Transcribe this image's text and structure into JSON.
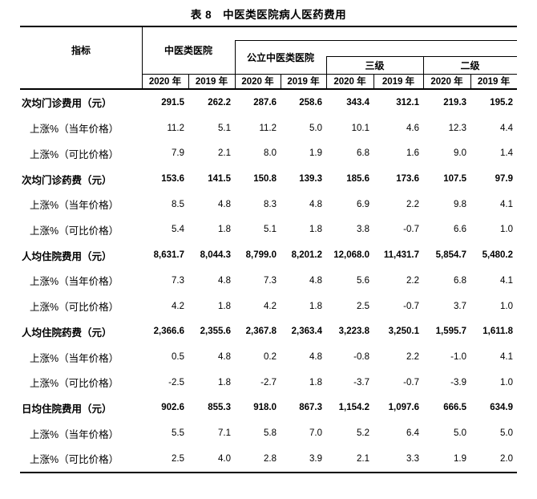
{
  "title": "表 8　中医类医院病人医药费用",
  "table": {
    "indicator_header": "指标",
    "groups": {
      "tcm_hospitals": "中医类医院",
      "public_tcm_hospitals": "公立中医类医院",
      "tertiary": "三级",
      "secondary": "二级"
    },
    "year_headers": [
      "2020 年",
      "2019 年",
      "2020 年",
      "2019 年",
      "2020 年",
      "2019 年",
      "2020 年",
      "2019 年"
    ],
    "rows": [
      {
        "label": "次均门诊费用（元）",
        "bold": true,
        "indent": false,
        "values": [
          "291.5",
          "262.2",
          "287.6",
          "258.6",
          "343.4",
          "312.1",
          "219.3",
          "195.2"
        ]
      },
      {
        "label": "上涨%（当年价格）",
        "bold": false,
        "indent": true,
        "values": [
          "11.2",
          "5.1",
          "11.2",
          "5.0",
          "10.1",
          "4.6",
          "12.3",
          "4.4"
        ]
      },
      {
        "label": "上涨%（可比价格）",
        "bold": false,
        "indent": true,
        "values": [
          "7.9",
          "2.1",
          "8.0",
          "1.9",
          "6.8",
          "1.6",
          "9.0",
          "1.4"
        ]
      },
      {
        "label": "次均门诊药费（元）",
        "bold": true,
        "indent": false,
        "values": [
          "153.6",
          "141.5",
          "150.8",
          "139.3",
          "185.6",
          "173.6",
          "107.5",
          "97.9"
        ]
      },
      {
        "label": "上涨%（当年价格）",
        "bold": false,
        "indent": true,
        "values": [
          "8.5",
          "4.8",
          "8.3",
          "4.8",
          "6.9",
          "2.2",
          "9.8",
          "4.1"
        ]
      },
      {
        "label": "上涨%（可比价格）",
        "bold": false,
        "indent": true,
        "values": [
          "5.4",
          "1.8",
          "5.1",
          "1.8",
          "3.8",
          "-0.7",
          "6.6",
          "1.0"
        ]
      },
      {
        "label": "人均住院费用（元）",
        "bold": true,
        "indent": false,
        "values": [
          "8,631.7",
          "8,044.3",
          "8,799.0",
          "8,201.2",
          "12,068.0",
          "11,431.7",
          "5,854.7",
          "5,480.2"
        ]
      },
      {
        "label": "上涨%（当年价格）",
        "bold": false,
        "indent": true,
        "values": [
          "7.3",
          "4.8",
          "7.3",
          "4.8",
          "5.6",
          "2.2",
          "6.8",
          "4.1"
        ]
      },
      {
        "label": "上涨%（可比价格）",
        "bold": false,
        "indent": true,
        "values": [
          "4.2",
          "1.8",
          "4.2",
          "1.8",
          "2.5",
          "-0.7",
          "3.7",
          "1.0"
        ]
      },
      {
        "label": "人均住院药费（元）",
        "bold": true,
        "indent": false,
        "values": [
          "2,366.6",
          "2,355.6",
          "2,367.8",
          "2,363.4",
          "3,223.8",
          "3,250.1",
          "1,595.7",
          "1,611.8"
        ]
      },
      {
        "label": "上涨%（当年价格）",
        "bold": false,
        "indent": true,
        "values": [
          "0.5",
          "4.8",
          "0.2",
          "4.8",
          "-0.8",
          "2.2",
          "-1.0",
          "4.1"
        ]
      },
      {
        "label": "上涨%（可比价格）",
        "bold": false,
        "indent": true,
        "values": [
          "-2.5",
          "1.8",
          "-2.7",
          "1.8",
          "-3.7",
          "-0.7",
          "-3.9",
          "1.0"
        ]
      },
      {
        "label": "日均住院费用（元）",
        "bold": true,
        "indent": false,
        "values": [
          "902.6",
          "855.3",
          "918.0",
          "867.3",
          "1,154.2",
          "1,097.6",
          "666.5",
          "634.9"
        ]
      },
      {
        "label": "上涨%（当年价格）",
        "bold": false,
        "indent": true,
        "values": [
          "5.5",
          "7.1",
          "5.8",
          "7.0",
          "5.2",
          "6.4",
          "5.0",
          "5.0"
        ]
      },
      {
        "label": "上涨%（可比价格）",
        "bold": false,
        "indent": true,
        "values": [
          "2.5",
          "4.0",
          "2.8",
          "3.9",
          "2.1",
          "3.3",
          "1.9",
          "2.0"
        ]
      }
    ]
  }
}
